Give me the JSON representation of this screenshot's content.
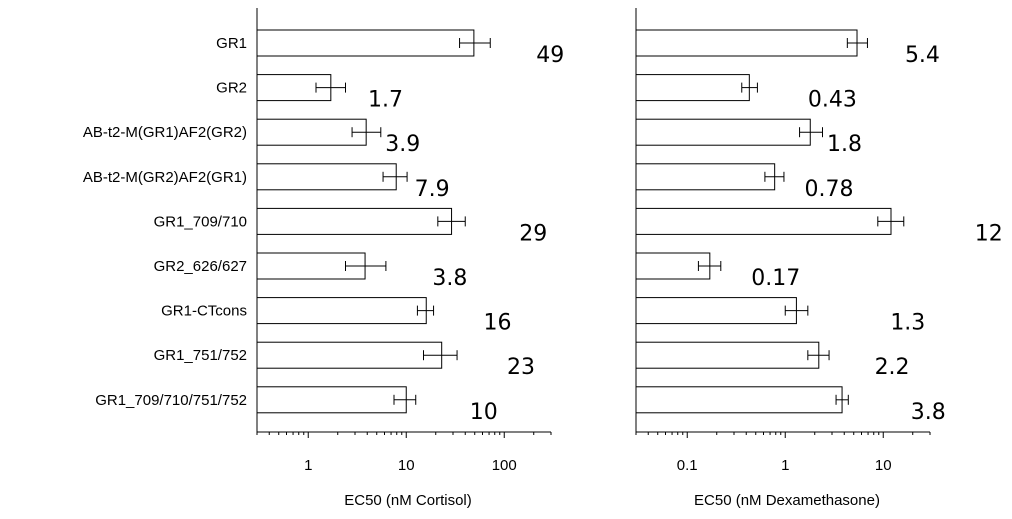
{
  "chart_data": [
    {
      "type": "bar",
      "orientation": "horizontal",
      "x_scale": "log",
      "categories": [
        "GR1",
        "GR2",
        "AB-t2-M(GR1)AF2(GR2)",
        "AB-t2-M(GR2)AF2(GR1)",
        "GR1_709/710",
        "GR2_626/627",
        "GR1-CTcons",
        "GR1_751/752",
        "GR1_709/710/751/752"
      ],
      "values": [
        49,
        1.7,
        3.9,
        7.9,
        29,
        3.8,
        16,
        23,
        10
      ],
      "error_low": [
        35,
        1.2,
        2.8,
        5.8,
        21,
        2.4,
        13,
        15,
        7.5
      ],
      "error_high": [
        72,
        2.4,
        5.5,
        10.2,
        40,
        6.2,
        19,
        33,
        12.5
      ],
      "value_labels": [
        "49",
        "1.7",
        "3.9",
        "7.9",
        "29",
        "3.8",
        "16",
        "23",
        "10"
      ],
      "xlabel": "EC50 (nM Cortisol)",
      "xlim": [
        0.3,
        300
      ],
      "tick_values": [
        1,
        10,
        100
      ],
      "tick_labels": [
        "1",
        "10",
        "100"
      ],
      "grid": false,
      "bar_fill": "#ffffff",
      "bar_stroke": "#000000"
    },
    {
      "type": "bar",
      "orientation": "horizontal",
      "x_scale": "log",
      "categories": [
        "GR1",
        "GR2",
        "AB-t2-M(GR1)AF2(GR2)",
        "AB-t2-M(GR2)AF2(GR1)",
        "GR1_709/710",
        "GR2_626/627",
        "GR1-CTcons",
        "GR1_751/752",
        "GR1_709/710/751/752"
      ],
      "values": [
        5.4,
        0.43,
        1.8,
        0.78,
        12,
        0.17,
        1.3,
        2.2,
        3.8
      ],
      "error_low": [
        4.3,
        0.36,
        1.4,
        0.62,
        8.8,
        0.13,
        1.0,
        1.7,
        3.3
      ],
      "error_high": [
        6.9,
        0.52,
        2.4,
        0.97,
        16.2,
        0.22,
        1.7,
        2.8,
        4.4
      ],
      "value_labels": [
        "5.4",
        "0.43",
        "1.8",
        "0.78",
        "12",
        "0.17",
        "1.3",
        "2.2",
        "3.8"
      ],
      "xlabel": "EC50 (nM Dexamethasone)",
      "xlim": [
        0.03,
        30
      ],
      "tick_values": [
        0.1,
        1,
        10
      ],
      "tick_labels": [
        "0.1",
        "1",
        "10"
      ],
      "grid": false,
      "bar_fill": "#ffffff",
      "bar_stroke": "#000000"
    }
  ]
}
